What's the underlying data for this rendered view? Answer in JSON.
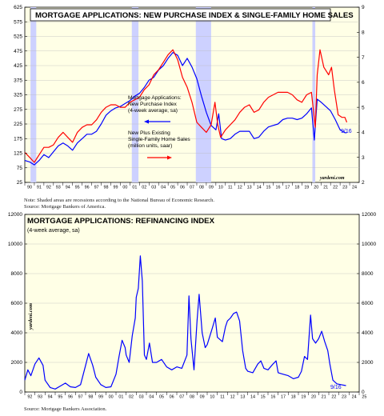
{
  "notes": {
    "top_note": "Note: Shaded areas are recessions according to the National Bureau of Economic Research.",
    "top_source": "Source: Mortgage Bankers of America.",
    "bottom_source": "Source:  Mortgage Bankers Association."
  },
  "colors": {
    "blue": "#0000ff",
    "red": "#ff0000",
    "panel_bg": "#ffffe6",
    "recession": "#cdd1ff"
  },
  "chart_data": [
    {
      "type": "line",
      "title": "MORTGAGE APPLICATIONS: NEW PURCHASE INDEX & SINGLE-FAMILY HOME SALES",
      "watermark": "yardeni.com",
      "end_label": "9/16",
      "xlim": [
        1990,
        2025
      ],
      "x_tick_labels": [
        "90",
        "91",
        "92",
        "93",
        "94",
        "95",
        "96",
        "97",
        "98",
        "99",
        "00",
        "01",
        "02",
        "03",
        "04",
        "05",
        "06",
        "07",
        "08",
        "09",
        "10",
        "11",
        "12",
        "13",
        "14",
        "15",
        "16",
        "17",
        "18",
        "19",
        "20",
        "21",
        "22",
        "23",
        "24"
      ],
      "left_axis": {
        "ylim": [
          25,
          625
        ],
        "ticks": [
          25,
          75,
          125,
          175,
          225,
          275,
          325,
          375,
          425,
          475,
          525,
          575,
          625
        ]
      },
      "right_axis": {
        "ylim": [
          2,
          9
        ],
        "ticks": [
          2,
          3,
          4,
          5,
          6,
          7,
          8,
          9
        ]
      },
      "recessions": [
        [
          1990.6,
          1991.2
        ],
        [
          2001.2,
          2001.9
        ],
        [
          2007.9,
          2009.5
        ],
        [
          2020.1,
          2020.4
        ]
      ],
      "series": [
        {
          "name": "Mortgage Applications: New Purchase Index (4-week average, sa)",
          "legend_lines": [
            "Mortgage Applications:",
            "New Purchase Index",
            "(4-week average, sa)"
          ],
          "axis": "left",
          "color": "blue",
          "points": [
            [
              1990,
              100
            ],
            [
              1990.5,
              95
            ],
            [
              1991,
              85
            ],
            [
              1991.5,
              100
            ],
            [
              1992,
              120
            ],
            [
              1992.5,
              110
            ],
            [
              1993,
              130
            ],
            [
              1993.5,
              150
            ],
            [
              1994,
              160
            ],
            [
              1994.5,
              150
            ],
            [
              1995,
              135
            ],
            [
              1995.5,
              160
            ],
            [
              1996,
              175
            ],
            [
              1996.5,
              190
            ],
            [
              1997,
              190
            ],
            [
              1997.5,
              200
            ],
            [
              1998,
              225
            ],
            [
              1998.5,
              255
            ],
            [
              1999,
              270
            ],
            [
              1999.5,
              280
            ],
            [
              2000,
              285
            ],
            [
              2000.5,
              295
            ],
            [
              2001,
              305
            ],
            [
              2001.5,
              320
            ],
            [
              2002,
              330
            ],
            [
              2002.5,
              350
            ],
            [
              2003,
              375
            ],
            [
              2003.5,
              385
            ],
            [
              2004,
              410
            ],
            [
              2004.5,
              425
            ],
            [
              2005,
              450
            ],
            [
              2005.5,
              470
            ],
            [
              2006,
              460
            ],
            [
              2006.5,
              425
            ],
            [
              2007,
              450
            ],
            [
              2007.5,
              420
            ],
            [
              2008,
              380
            ],
            [
              2008.5,
              320
            ],
            [
              2009,
              265
            ],
            [
              2009.5,
              220
            ],
            [
              2010,
              205
            ],
            [
              2010.3,
              260
            ],
            [
              2010.6,
              175
            ],
            [
              2011,
              170
            ],
            [
              2011.5,
              175
            ],
            [
              2012,
              190
            ],
            [
              2012.5,
              200
            ],
            [
              2013,
              200
            ],
            [
              2013.5,
              200
            ],
            [
              2014,
              175
            ],
            [
              2014.5,
              180
            ],
            [
              2015,
              200
            ],
            [
              2015.5,
              215
            ],
            [
              2016,
              220
            ],
            [
              2016.5,
              225
            ],
            [
              2017,
              240
            ],
            [
              2017.5,
              245
            ],
            [
              2018,
              245
            ],
            [
              2018.5,
              240
            ],
            [
              2019,
              245
            ],
            [
              2019.5,
              260
            ],
            [
              2020,
              280
            ],
            [
              2020.3,
              170
            ],
            [
              2020.6,
              310
            ],
            [
              2021,
              300
            ],
            [
              2021.5,
              285
            ],
            [
              2022,
              270
            ],
            [
              2022.5,
              240
            ],
            [
              2023,
              205
            ],
            [
              2023.5,
              195
            ],
            [
              2023.7,
              195
            ]
          ]
        },
        {
          "name": "New Plus Existing Single-Family Home Sales (million units, saar)",
          "legend_lines": [
            "New Plus Existing",
            "Single-Family Home Sales",
            "(million units, saar)"
          ],
          "axis": "right",
          "color": "red",
          "points": [
            [
              1990,
              3.2
            ],
            [
              1990.5,
              3.0
            ],
            [
              1991,
              2.8
            ],
            [
              1991.5,
              3.1
            ],
            [
              1992,
              3.4
            ],
            [
              1992.5,
              3.4
            ],
            [
              1993,
              3.5
            ],
            [
              1993.5,
              3.8
            ],
            [
              1994,
              4.0
            ],
            [
              1994.5,
              3.8
            ],
            [
              1995,
              3.6
            ],
            [
              1995.5,
              4.0
            ],
            [
              1996,
              4.2
            ],
            [
              1996.5,
              4.3
            ],
            [
              1997,
              4.3
            ],
            [
              1997.5,
              4.5
            ],
            [
              1998,
              4.8
            ],
            [
              1998.5,
              5.0
            ],
            [
              1999,
              5.1
            ],
            [
              1999.5,
              5.1
            ],
            [
              2000,
              5.0
            ],
            [
              2000.5,
              5.0
            ],
            [
              2001,
              5.2
            ],
            [
              2001.5,
              5.3
            ],
            [
              2002,
              5.4
            ],
            [
              2002.5,
              5.7
            ],
            [
              2003,
              5.9
            ],
            [
              2003.5,
              6.3
            ],
            [
              2004,
              6.5
            ],
            [
              2004.5,
              6.8
            ],
            [
              2005,
              7.1
            ],
            [
              2005.5,
              7.3
            ],
            [
              2006,
              6.9
            ],
            [
              2006.5,
              6.2
            ],
            [
              2007,
              5.8
            ],
            [
              2007.5,
              5.2
            ],
            [
              2008,
              4.4
            ],
            [
              2008.5,
              4.2
            ],
            [
              2009,
              4.0
            ],
            [
              2009.5,
              4.3
            ],
            [
              2009.9,
              5.2
            ],
            [
              2010.2,
              4.3
            ],
            [
              2010.5,
              3.8
            ],
            [
              2011,
              4.1
            ],
            [
              2011.5,
              4.3
            ],
            [
              2012,
              4.5
            ],
            [
              2012.5,
              4.8
            ],
            [
              2013,
              5.0
            ],
            [
              2013.5,
              5.1
            ],
            [
              2014,
              4.8
            ],
            [
              2014.5,
              4.9
            ],
            [
              2015,
              5.2
            ],
            [
              2015.5,
              5.4
            ],
            [
              2016,
              5.5
            ],
            [
              2016.5,
              5.6
            ],
            [
              2017,
              5.6
            ],
            [
              2017.5,
              5.6
            ],
            [
              2018,
              5.5
            ],
            [
              2018.5,
              5.3
            ],
            [
              2019,
              5.2
            ],
            [
              2019.5,
              5.5
            ],
            [
              2020,
              5.6
            ],
            [
              2020.4,
              4.2
            ],
            [
              2020.6,
              6.3
            ],
            [
              2020.9,
              7.3
            ],
            [
              2021.3,
              6.6
            ],
            [
              2021.8,
              6.3
            ],
            [
              2022.1,
              6.6
            ],
            [
              2022.4,
              5.7
            ],
            [
              2022.8,
              4.7
            ],
            [
              2023.2,
              4.6
            ],
            [
              2023.5,
              4.6
            ],
            [
              2023.7,
              4.4
            ]
          ]
        }
      ]
    },
    {
      "type": "line",
      "title": "MORTGAGE APPLICATIONS: REFINANCING INDEX",
      "subtitle": "(4-week average, sa)",
      "watermark": "yardeni.com",
      "end_label": "9/16",
      "xlim": [
        1992,
        2025
      ],
      "x_tick_labels": [
        "92",
        "93",
        "94",
        "95",
        "96",
        "97",
        "98",
        "99",
        "00",
        "01",
        "02",
        "03",
        "04",
        "05",
        "06",
        "07",
        "08",
        "09",
        "10",
        "11",
        "12",
        "13",
        "14",
        "15",
        "16",
        "17",
        "18",
        "19",
        "20",
        "21",
        "22",
        "23",
        "24",
        "25"
      ],
      "ylim": [
        0,
        12000
      ],
      "y_ticks": [
        0,
        2000,
        4000,
        6000,
        8000,
        10000,
        12000
      ],
      "series": [
        {
          "color": "blue",
          "points": [
            [
              1992,
              800
            ],
            [
              1992.3,
              1500
            ],
            [
              1992.6,
              1100
            ],
            [
              1993,
              1900
            ],
            [
              1993.4,
              2300
            ],
            [
              1993.8,
              1800
            ],
            [
              1994,
              800
            ],
            [
              1994.5,
              300
            ],
            [
              1995,
              200
            ],
            [
              1995.5,
              400
            ],
            [
              1996,
              600
            ],
            [
              1996.5,
              350
            ],
            [
              1997,
              300
            ],
            [
              1997.5,
              500
            ],
            [
              1998,
              1800
            ],
            [
              1998.3,
              2600
            ],
            [
              1998.7,
              1800
            ],
            [
              1999,
              1000
            ],
            [
              1999.5,
              500
            ],
            [
              2000,
              300
            ],
            [
              2000.5,
              350
            ],
            [
              2001,
              1200
            ],
            [
              2001.3,
              2400
            ],
            [
              2001.6,
              3500
            ],
            [
              2001.9,
              3000
            ],
            [
              2002,
              2500
            ],
            [
              2002.3,
              2000
            ],
            [
              2002.6,
              3800
            ],
            [
              2002.9,
              5000
            ],
            [
              2003,
              6400
            ],
            [
              2003.2,
              7000
            ],
            [
              2003.4,
              9200
            ],
            [
              2003.6,
              7500
            ],
            [
              2003.8,
              2500
            ],
            [
              2004,
              2200
            ],
            [
              2004.3,
              3300
            ],
            [
              2004.6,
              2000
            ],
            [
              2005,
              2000
            ],
            [
              2005.5,
              2200
            ],
            [
              2006,
              1700
            ],
            [
              2006.5,
              1500
            ],
            [
              2007,
              1700
            ],
            [
              2007.5,
              1600
            ],
            [
              2008,
              2500
            ],
            [
              2008.2,
              6500
            ],
            [
              2008.4,
              3600
            ],
            [
              2008.7,
              1500
            ],
            [
              2009,
              4800
            ],
            [
              2009.2,
              6600
            ],
            [
              2009.5,
              4000
            ],
            [
              2009.8,
              3000
            ],
            [
              2010,
              3200
            ],
            [
              2010.5,
              4300
            ],
            [
              2010.8,
              5000
            ],
            [
              2011,
              3700
            ],
            [
              2011.5,
              3400
            ],
            [
              2011.8,
              4400
            ],
            [
              2012,
              4800
            ],
            [
              2012.3,
              5000
            ],
            [
              2012.6,
              5300
            ],
            [
              2012.9,
              5400
            ],
            [
              2013.2,
              4800
            ],
            [
              2013.5,
              2800
            ],
            [
              2013.8,
              1600
            ],
            [
              2014,
              1400
            ],
            [
              2014.5,
              1300
            ],
            [
              2015,
              1900
            ],
            [
              2015.3,
              2100
            ],
            [
              2015.6,
              1600
            ],
            [
              2016,
              1500
            ],
            [
              2016.5,
              1900
            ],
            [
              2016.8,
              2100
            ],
            [
              2017,
              1300
            ],
            [
              2017.5,
              1200
            ],
            [
              2018,
              1100
            ],
            [
              2018.5,
              900
            ],
            [
              2019,
              1000
            ],
            [
              2019.3,
              1400
            ],
            [
              2019.6,
              2400
            ],
            [
              2019.9,
              2200
            ],
            [
              2020.2,
              5200
            ],
            [
              2020.4,
              3600
            ],
            [
              2020.7,
              3300
            ],
            [
              2021,
              3600
            ],
            [
              2021.3,
              4100
            ],
            [
              2021.6,
              3400
            ],
            [
              2021.9,
              2800
            ],
            [
              2022.1,
              1900
            ],
            [
              2022.4,
              800
            ],
            [
              2022.8,
              550
            ],
            [
              2023.2,
              500
            ],
            [
              2023.7,
              430
            ]
          ]
        }
      ]
    }
  ]
}
